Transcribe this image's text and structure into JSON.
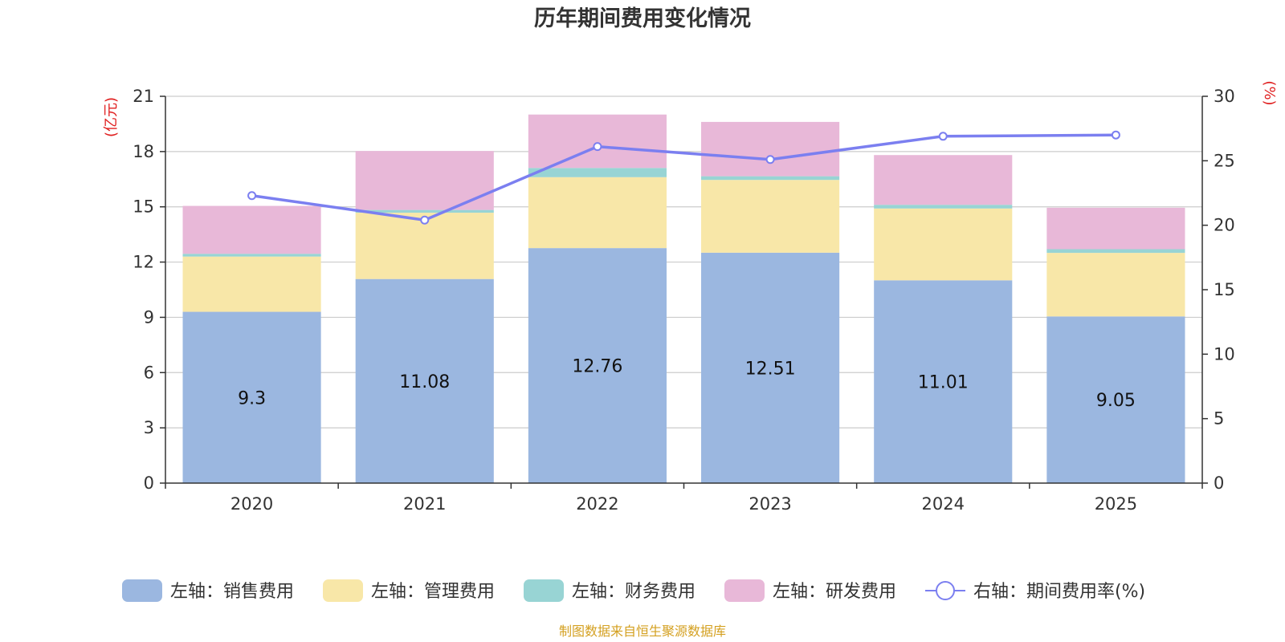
{
  "chart_data": {
    "type": "bar",
    "stacked": true,
    "title": "历年期间费用变化情况",
    "categories": [
      "2020",
      "2021",
      "2022",
      "2023",
      "2024",
      "2025"
    ],
    "left_axis": {
      "unit": "(亿元)",
      "ylim": [
        0,
        21
      ],
      "ticks": [
        "0",
        "3",
        "6",
        "9",
        "12",
        "15",
        "18",
        "21"
      ],
      "tick_values": [
        0,
        3,
        6,
        9,
        12,
        15,
        18,
        21
      ]
    },
    "right_axis": {
      "unit": "(%)",
      "ylim": [
        0,
        30
      ],
      "ticks": [
        "0",
        "5",
        "10",
        "15",
        "20",
        "25",
        "30"
      ],
      "tick_values": [
        0,
        5,
        10,
        15,
        20,
        25,
        30
      ]
    },
    "series": [
      {
        "name": "左轴：销售费用",
        "color": "#9bb7e0",
        "axis": "left",
        "values": [
          9.3,
          11.08,
          12.76,
          12.51,
          11.01,
          9.05
        ],
        "labels": [
          "9.3",
          "11.08",
          "12.76",
          "12.51",
          "11.01",
          "9.05"
        ]
      },
      {
        "name": "左轴：管理费用",
        "color": "#f8e7a8",
        "axis": "left",
        "values": [
          3.0,
          3.6,
          3.85,
          3.95,
          3.9,
          3.45
        ]
      },
      {
        "name": "左轴：财务费用",
        "color": "#98d4d4",
        "axis": "left",
        "values": [
          0.15,
          0.15,
          0.5,
          0.2,
          0.2,
          0.2
        ]
      },
      {
        "name": "左轴：研发费用",
        "color": "#e8b8d8",
        "axis": "left",
        "values": [
          2.6,
          3.2,
          2.9,
          2.95,
          2.7,
          2.25
        ]
      },
      {
        "name": "右轴：期间费用率(%)",
        "type": "line",
        "color": "#7b7ff0",
        "axis": "right",
        "values": [
          22.3,
          20.4,
          26.1,
          25.1,
          26.9,
          27.0
        ]
      }
    ]
  },
  "footer": {
    "source": "制图数据来自恒生聚源数据库",
    "source_color": "#d4a020"
  },
  "colors": {
    "unit_color": "#e02020",
    "grid": "#cccccc",
    "axis": "#333333"
  }
}
